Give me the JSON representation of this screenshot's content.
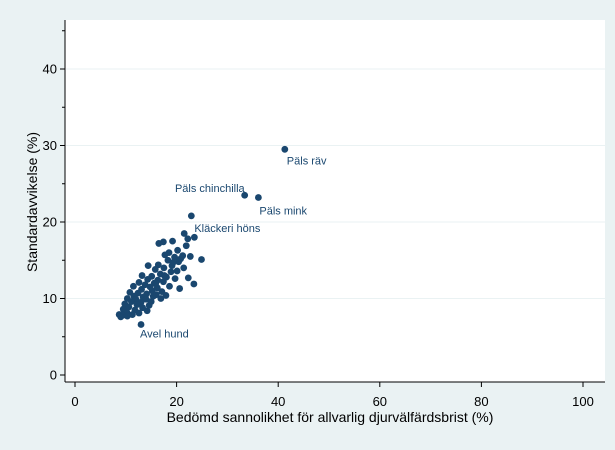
{
  "chart_data": {
    "type": "scatter",
    "title": "",
    "xlabel": "Bedömd sannolikhet för allvarlig djurvälfärdsbrist (%)",
    "ylabel": "Standardavvikelse (%)",
    "xlim": [
      0,
      100
    ],
    "ylim": [
      0,
      46
    ],
    "xticks": [
      0,
      20,
      40,
      60,
      80,
      100
    ],
    "yticks": [
      0,
      10,
      20,
      30,
      40
    ],
    "grid": "horizontal",
    "colors": {
      "outer_background": "#eaf2f3",
      "plot_background": "#ffffff",
      "marker": "#1a476f",
      "label": "#1a476f",
      "gridline": "#eaf2f3"
    },
    "points": [
      {
        "x": 41.3,
        "y": 29.5
      },
      {
        "x": 33.4,
        "y": 23.5
      },
      {
        "x": 36.1,
        "y": 23.2
      },
      {
        "x": 22.9,
        "y": 20.8
      },
      {
        "x": 21.5,
        "y": 18.5
      },
      {
        "x": 22.2,
        "y": 17.8
      },
      {
        "x": 23.5,
        "y": 18.0
      },
      {
        "x": 16.5,
        "y": 17.2
      },
      {
        "x": 17.4,
        "y": 17.4
      },
      {
        "x": 19.2,
        "y": 17.5
      },
      {
        "x": 21.9,
        "y": 16.9
      },
      {
        "x": 20.2,
        "y": 16.3
      },
      {
        "x": 18.5,
        "y": 16.0
      },
      {
        "x": 17.7,
        "y": 15.7
      },
      {
        "x": 19.6,
        "y": 15.4
      },
      {
        "x": 21.2,
        "y": 15.6
      },
      {
        "x": 22.7,
        "y": 15.5
      },
      {
        "x": 24.9,
        "y": 15.1
      },
      {
        "x": 18.3,
        "y": 15.0
      },
      {
        "x": 20.4,
        "y": 14.8
      },
      {
        "x": 16.4,
        "y": 14.4
      },
      {
        "x": 19.1,
        "y": 14.3
      },
      {
        "x": 21.4,
        "y": 14.0
      },
      {
        "x": 14.4,
        "y": 14.3
      },
      {
        "x": 17.5,
        "y": 14.0
      },
      {
        "x": 15.8,
        "y": 13.8
      },
      {
        "x": 18.9,
        "y": 13.5
      },
      {
        "x": 20.1,
        "y": 13.6
      },
      {
        "x": 16.8,
        "y": 13.2
      },
      {
        "x": 13.2,
        "y": 13.0
      },
      {
        "x": 15.1,
        "y": 12.9
      },
      {
        "x": 18.0,
        "y": 12.8
      },
      {
        "x": 19.7,
        "y": 12.6
      },
      {
        "x": 22.3,
        "y": 12.7
      },
      {
        "x": 14.3,
        "y": 12.5
      },
      {
        "x": 16.3,
        "y": 12.4
      },
      {
        "x": 12.6,
        "y": 12.1
      },
      {
        "x": 15.6,
        "y": 12.0
      },
      {
        "x": 17.4,
        "y": 12.2
      },
      {
        "x": 23.4,
        "y": 11.9
      },
      {
        "x": 13.8,
        "y": 11.8
      },
      {
        "x": 11.5,
        "y": 11.6
      },
      {
        "x": 14.8,
        "y": 11.5
      },
      {
        "x": 16.2,
        "y": 11.4
      },
      {
        "x": 18.6,
        "y": 11.6
      },
      {
        "x": 20.6,
        "y": 11.3
      },
      {
        "x": 13.1,
        "y": 11.2
      },
      {
        "x": 15.2,
        "y": 11.0
      },
      {
        "x": 17.1,
        "y": 10.9
      },
      {
        "x": 10.8,
        "y": 10.8
      },
      {
        "x": 12.4,
        "y": 10.7
      },
      {
        "x": 14.1,
        "y": 10.6
      },
      {
        "x": 16.0,
        "y": 10.5
      },
      {
        "x": 11.6,
        "y": 10.3
      },
      {
        "x": 13.4,
        "y": 10.2
      },
      {
        "x": 15.4,
        "y": 10.3
      },
      {
        "x": 17.9,
        "y": 10.4
      },
      {
        "x": 10.3,
        "y": 10.0
      },
      {
        "x": 12.0,
        "y": 9.9
      },
      {
        "x": 14.0,
        "y": 9.9
      },
      {
        "x": 16.9,
        "y": 10.0
      },
      {
        "x": 11.1,
        "y": 9.6
      },
      {
        "x": 13.0,
        "y": 9.5
      },
      {
        "x": 15.0,
        "y": 9.6
      },
      {
        "x": 9.8,
        "y": 9.3
      },
      {
        "x": 12.2,
        "y": 9.2
      },
      {
        "x": 14.6,
        "y": 9.1
      },
      {
        "x": 10.6,
        "y": 8.9
      },
      {
        "x": 13.3,
        "y": 8.8
      },
      {
        "x": 9.5,
        "y": 8.6
      },
      {
        "x": 11.8,
        "y": 8.5
      },
      {
        "x": 14.2,
        "y": 8.4
      },
      {
        "x": 10.2,
        "y": 8.2
      },
      {
        "x": 12.6,
        "y": 8.1
      },
      {
        "x": 8.7,
        "y": 7.9
      },
      {
        "x": 9.4,
        "y": 7.8
      },
      {
        "x": 10.3,
        "y": 7.7
      },
      {
        "x": 11.3,
        "y": 7.9
      },
      {
        "x": 9.0,
        "y": 7.6
      },
      {
        "x": 13.0,
        "y": 6.6
      },
      {
        "x": 15.9,
        "y": 12.0
      },
      {
        "x": 17.6,
        "y": 13.0
      },
      {
        "x": 19.3,
        "y": 14.7
      },
      {
        "x": 20.8,
        "y": 15.2
      }
    ],
    "labels": [
      {
        "text": "Päls räv",
        "x": 41.3,
        "y": 29.5
      },
      {
        "text": "Päls chinchilla",
        "x": 33.4,
        "y": 23.5
      },
      {
        "text": "Päls mink",
        "x": 36.1,
        "y": 23.2
      },
      {
        "text": "Kläckeri höns",
        "x": 22.9,
        "y": 20.8
      },
      {
        "text": "Avel hund",
        "x": 13.0,
        "y": 6.6
      }
    ]
  }
}
